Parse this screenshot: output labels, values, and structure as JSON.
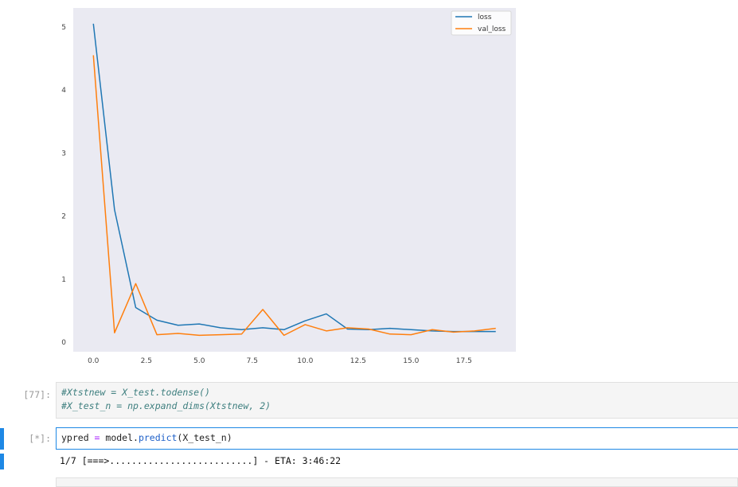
{
  "chart_data": {
    "type": "line",
    "x": [
      0,
      1,
      2,
      3,
      4,
      5,
      6,
      7,
      8,
      9,
      10,
      11,
      12,
      13,
      14,
      15,
      16,
      17,
      18,
      19
    ],
    "series": [
      {
        "name": "loss",
        "color": "#1f77b4",
        "values": [
          5.05,
          2.1,
          0.55,
          0.35,
          0.27,
          0.29,
          0.23,
          0.2,
          0.23,
          0.2,
          0.34,
          0.45,
          0.21,
          0.2,
          0.22,
          0.2,
          0.18,
          0.17,
          0.17,
          0.17
        ]
      },
      {
        "name": "val_loss",
        "color": "#ff7f0e",
        "values": [
          4.55,
          0.15,
          0.93,
          0.12,
          0.14,
          0.11,
          0.12,
          0.13,
          0.52,
          0.11,
          0.28,
          0.18,
          0.23,
          0.21,
          0.13,
          0.12,
          0.2,
          0.16,
          0.18,
          0.22
        ]
      }
    ],
    "xlim": [
      -0.95,
      19.95
    ],
    "ylim": [
      -0.15,
      5.3
    ],
    "xticks": [
      "0.0",
      "2.5",
      "5.0",
      "7.5",
      "10.0",
      "12.5",
      "15.0",
      "17.5"
    ],
    "yticks": [
      "0",
      "1",
      "2",
      "3",
      "4",
      "5"
    ],
    "grid": false,
    "legend": "top-right",
    "background": "#eaeaf2"
  },
  "cells": [
    {
      "prompt": "[77]:",
      "lines": [
        "#Xtstnew = X_test.todense()",
        "#X_test_n = np.expand_dims(Xtstnew, 2)"
      ]
    },
    {
      "prompt": "[*]:",
      "code": {
        "a": "ypred ",
        "op": "=",
        "b": " model.",
        "fn": "predict",
        "c": "(X_test_n)"
      },
      "output": "1/7 [===>..........................] - ETA: 3:46:22"
    }
  ],
  "colors": {
    "accent": "#1e88e5"
  }
}
